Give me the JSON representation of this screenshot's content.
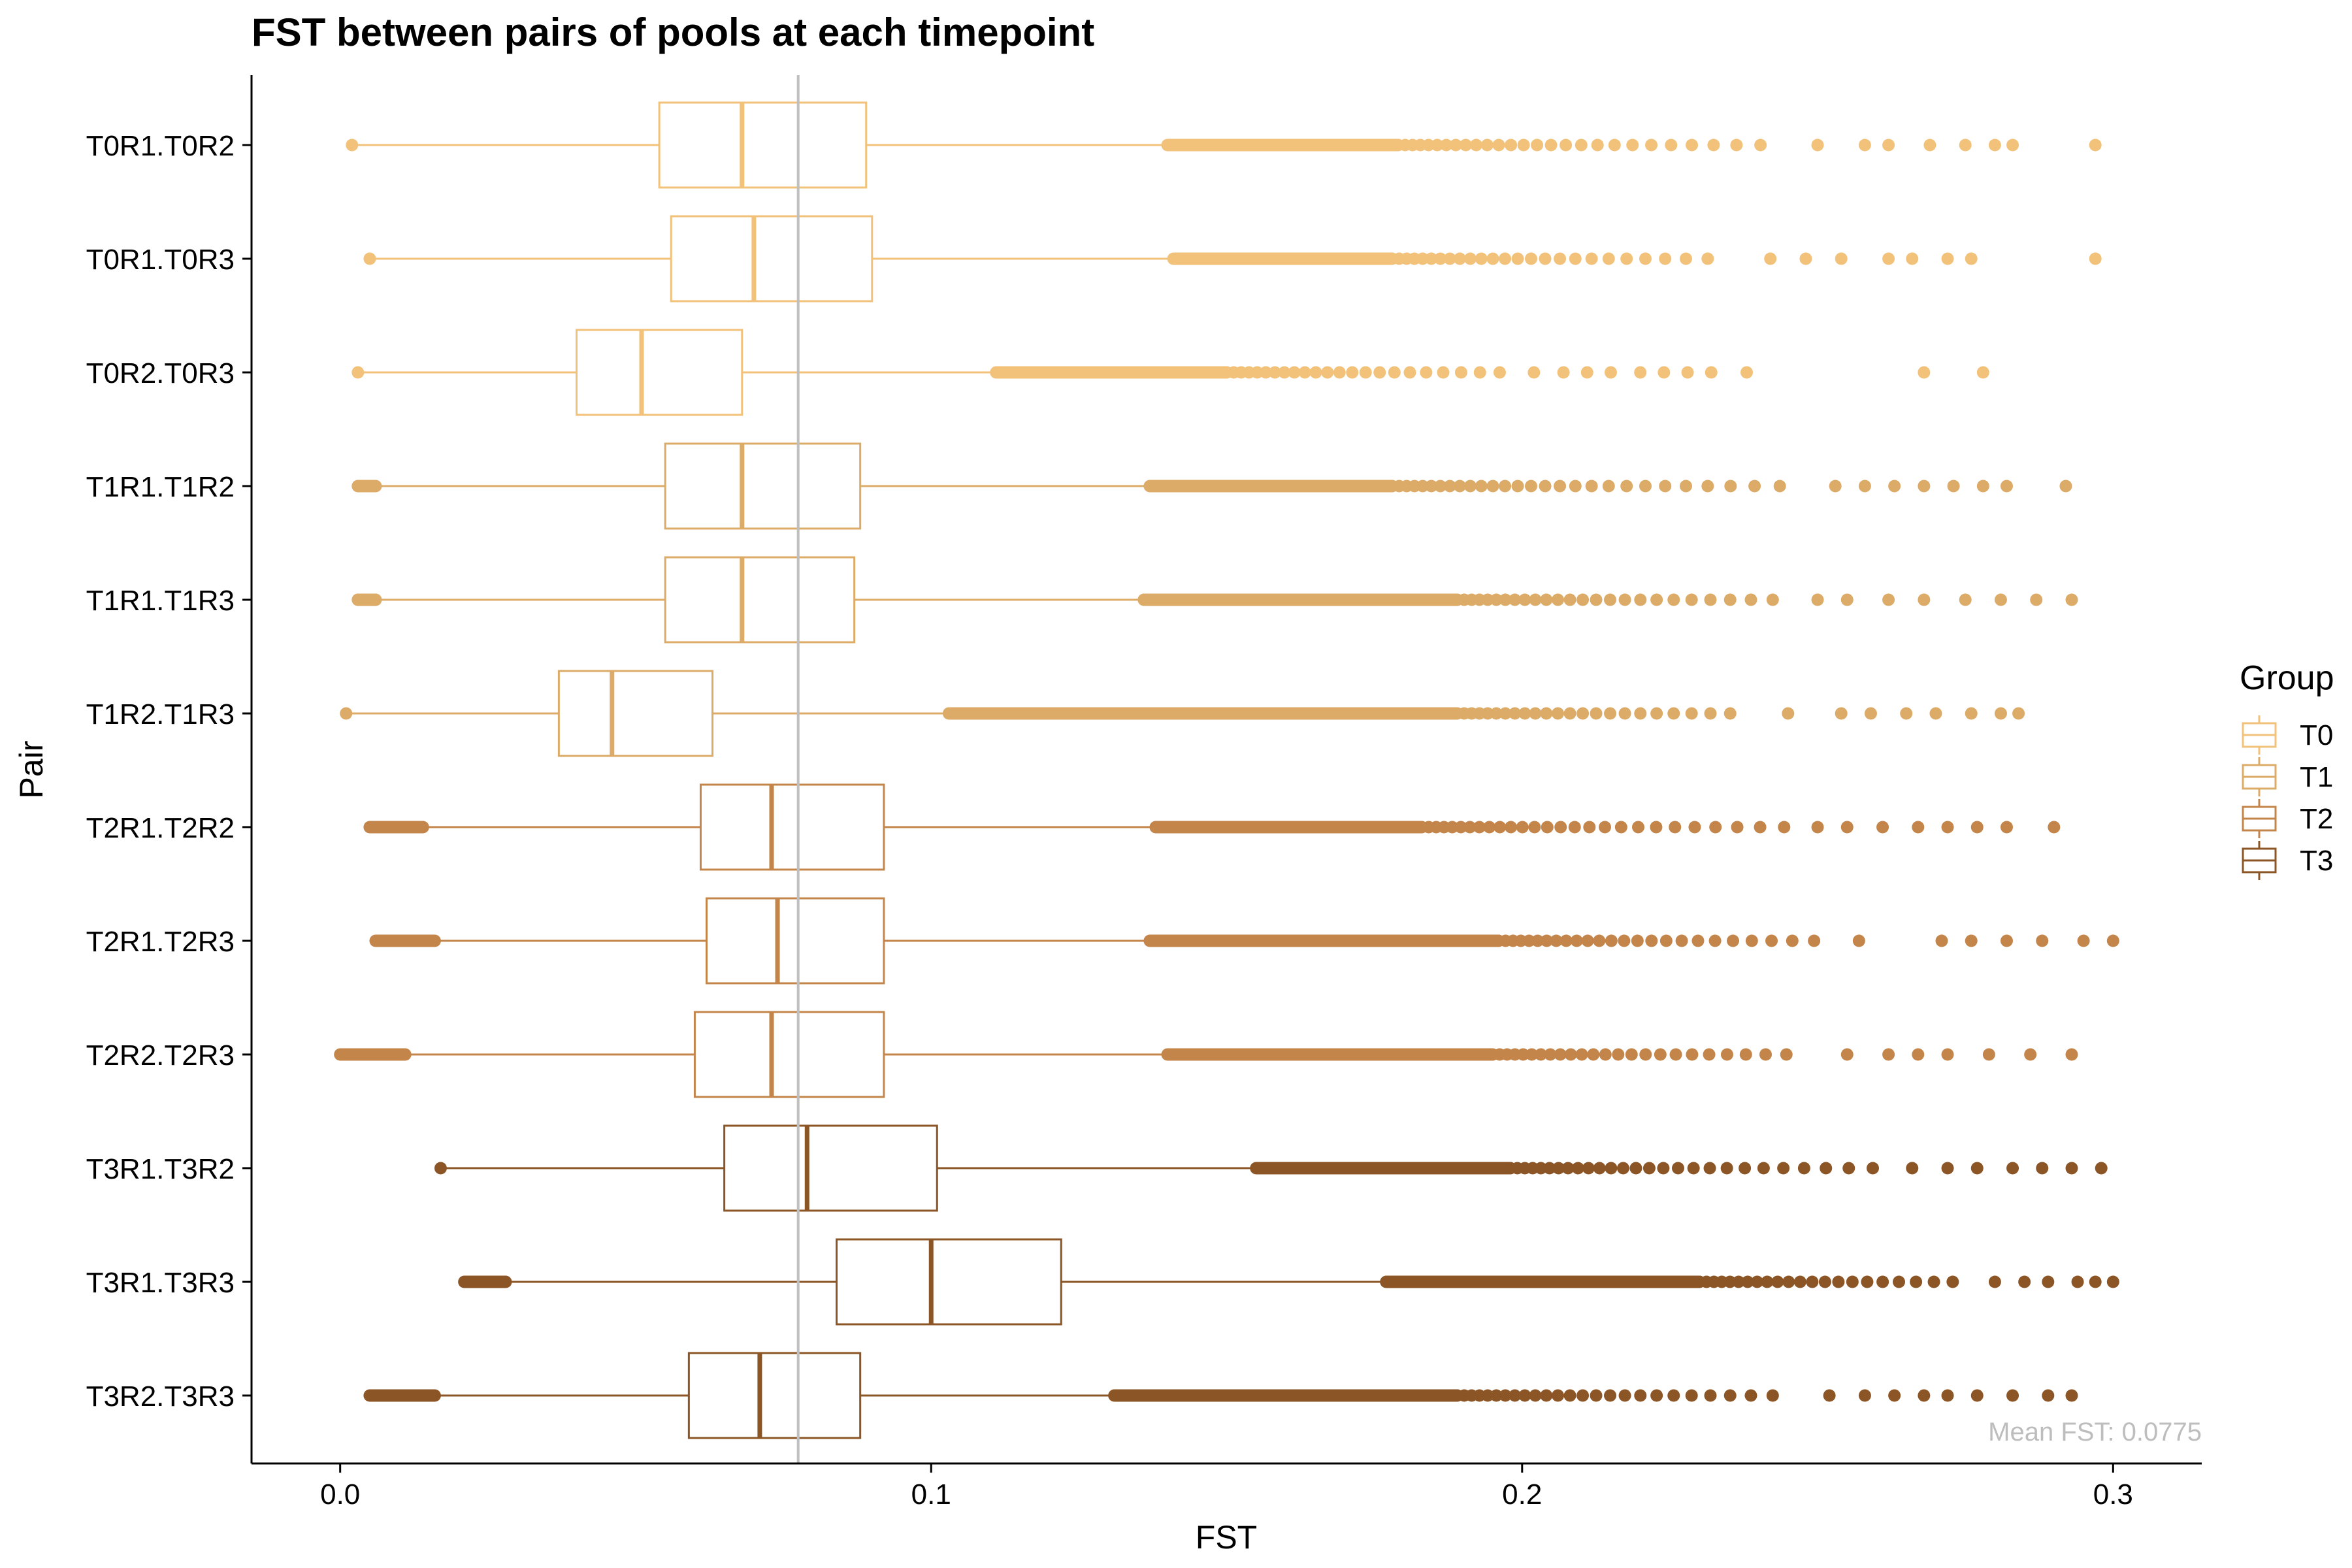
{
  "chart_data": {
    "type": "boxplot",
    "orientation": "horizontal",
    "title": "FST between pairs of pools at each timepoint",
    "xlabel": "FST",
    "ylabel": "Pair",
    "xlim": [
      -0.015,
      0.315
    ],
    "xticks": [
      {
        "value": 0.0,
        "label": "0.0"
      },
      {
        "value": 0.1,
        "label": "0.1"
      },
      {
        "value": 0.2,
        "label": "0.2"
      },
      {
        "value": 0.3,
        "label": "0.3"
      }
    ],
    "grid": false,
    "legend": {
      "title": "Group",
      "position": "right",
      "entries": [
        {
          "label": "T0",
          "color": "#f2c27b"
        },
        {
          "label": "T1",
          "color": "#ddab68"
        },
        {
          "label": "T2",
          "color": "#c4854a"
        },
        {
          "label": "T3",
          "color": "#8c5526"
        }
      ]
    },
    "reference_line": {
      "value": 0.0775,
      "color": "#bfbfbf"
    },
    "annotation": "Mean FST: 0.0775",
    "series": [
      {
        "label": "T0R1.T0R2",
        "group": "T0",
        "whisker_low": 0.002,
        "q1": 0.054,
        "median": 0.068,
        "q3": 0.089,
        "whisker_high": 0.14,
        "outliers_dense": [
          0.14,
          0.179
        ],
        "outliers_mid": [
          0.179,
          0.242
        ],
        "outliers_sparse": [
          0.25,
          0.258,
          0.262,
          0.269,
          0.275,
          0.28,
          0.283,
          0.297
        ]
      },
      {
        "label": "T0R1.T0R3",
        "group": "T0",
        "whisker_low": 0.005,
        "q1": 0.056,
        "median": 0.07,
        "q3": 0.09,
        "whisker_high": 0.141,
        "outliers_dense": [
          0.141,
          0.178
        ],
        "outliers_mid": [
          0.178,
          0.234
        ],
        "outliers_sparse": [
          0.242,
          0.248,
          0.254,
          0.262,
          0.266,
          0.272,
          0.276,
          0.297
        ]
      },
      {
        "label": "T0R2.T0R3",
        "group": "T0",
        "whisker_low": 0.003,
        "q1": 0.04,
        "median": 0.051,
        "q3": 0.068,
        "whisker_high": 0.111,
        "outliers_dense": [
          0.111,
          0.15
        ],
        "outliers_mid": [
          0.15,
          0.199
        ],
        "outliers_sparse": [
          0.202,
          0.207,
          0.211,
          0.215,
          0.22,
          0.224,
          0.228,
          0.232,
          0.238,
          0.268,
          0.278
        ]
      },
      {
        "label": "T1R1.T1R2",
        "group": "T1",
        "whisker_low": 0.003,
        "q1": 0.055,
        "median": 0.068,
        "q3": 0.088,
        "whisker_high": 0.137,
        "outliers_dense": [
          0.137,
          0.178
        ],
        "outliers_mid": [
          0.178,
          0.247
        ],
        "outliers_sparse": [
          0.253,
          0.258,
          0.263,
          0.268,
          0.273,
          0.278,
          0.282,
          0.292
        ]
      },
      {
        "label": "T1R1.T1R3",
        "group": "T1",
        "whisker_low": 0.003,
        "q1": 0.055,
        "median": 0.068,
        "q3": 0.087,
        "whisker_high": 0.136,
        "outliers_dense": [
          0.136,
          0.189
        ],
        "outliers_mid": [
          0.189,
          0.244
        ],
        "outliers_sparse": [
          0.25,
          0.255,
          0.262,
          0.268,
          0.275,
          0.281,
          0.287,
          0.293
        ]
      },
      {
        "label": "T1R2.T1R3",
        "group": "T1",
        "whisker_low": 0.001,
        "q1": 0.037,
        "median": 0.046,
        "q3": 0.063,
        "whisker_high": 0.103,
        "outliers_dense": [
          0.103,
          0.189
        ],
        "outliers_mid": [
          0.189,
          0.238
        ],
        "outliers_sparse": [
          0.245,
          0.254,
          0.259,
          0.265,
          0.27,
          0.276,
          0.281,
          0.284
        ]
      },
      {
        "label": "T2R1.T2R2",
        "group": "T2",
        "whisker_low": 0.005,
        "q1": 0.061,
        "median": 0.073,
        "q3": 0.092,
        "whisker_high": 0.138,
        "outliers_dense": [
          0.138,
          0.183
        ],
        "outliers_mid": [
          0.183,
          0.245
        ],
        "outliers_sparse": [
          0.25,
          0.255,
          0.261,
          0.267,
          0.272,
          0.277,
          0.282,
          0.29
        ]
      },
      {
        "label": "T2R1.T2R3",
        "group": "T2",
        "whisker_low": 0.006,
        "q1": 0.062,
        "median": 0.074,
        "q3": 0.092,
        "whisker_high": 0.137,
        "outliers_dense": [
          0.137,
          0.196
        ],
        "outliers_mid": [
          0.196,
          0.25
        ],
        "outliers_sparse": [
          0.257,
          0.271,
          0.276,
          0.282,
          0.288,
          0.295,
          0.3
        ]
      },
      {
        "label": "T2R2.T2R3",
        "group": "T2",
        "whisker_low": 0.0,
        "q1": 0.06,
        "median": 0.073,
        "q3": 0.092,
        "whisker_high": 0.14,
        "outliers_dense": [
          0.14,
          0.195
        ],
        "outliers_mid": [
          0.195,
          0.248
        ],
        "outliers_sparse": [
          0.255,
          0.262,
          0.267,
          0.272,
          0.279,
          0.286,
          0.293
        ]
      },
      {
        "label": "T3R1.T3R2",
        "group": "T3",
        "whisker_low": 0.017,
        "q1": 0.065,
        "median": 0.079,
        "q3": 0.101,
        "whisker_high": 0.155,
        "outliers_dense": [
          0.155,
          0.198
        ],
        "outliers_mid": [
          0.198,
          0.262
        ],
        "outliers_sparse": [
          0.266,
          0.272,
          0.277,
          0.283,
          0.288,
          0.293,
          0.298
        ]
      },
      {
        "label": "T3R1.T3R3",
        "group": "T3",
        "whisker_low": 0.021,
        "q1": 0.084,
        "median": 0.1,
        "q3": 0.122,
        "whisker_high": 0.177,
        "outliers_dense": [
          0.177,
          0.23
        ],
        "outliers_mid": [
          0.23,
          0.275
        ],
        "outliers_sparse": [
          0.28,
          0.285,
          0.289,
          0.294,
          0.297,
          0.3
        ]
      },
      {
        "label": "T3R2.T3R3",
        "group": "T3",
        "whisker_low": 0.005,
        "q1": 0.059,
        "median": 0.071,
        "q3": 0.088,
        "whisker_high": 0.131,
        "outliers_dense": [
          0.131,
          0.189
        ],
        "outliers_mid": [
          0.189,
          0.246
        ],
        "outliers_sparse": [
          0.252,
          0.258,
          0.263,
          0.268,
          0.272,
          0.277,
          0.283,
          0.289,
          0.293
        ]
      }
    ]
  }
}
